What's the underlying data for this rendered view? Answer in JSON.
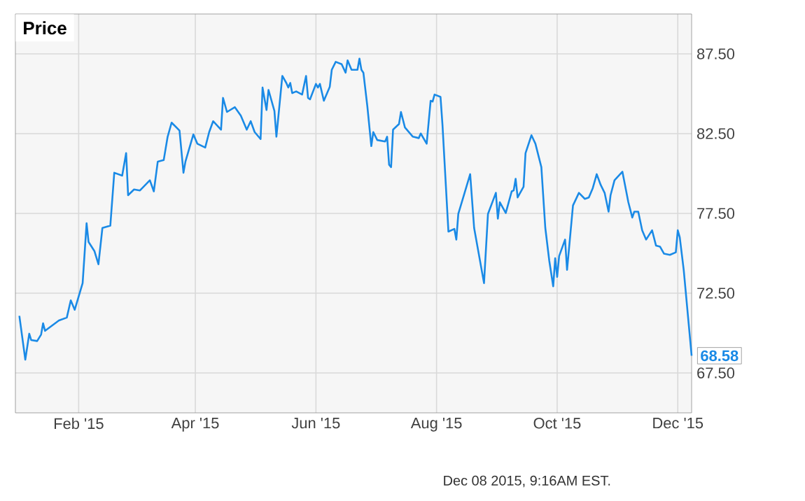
{
  "chart_data": {
    "type": "line",
    "title": "Price",
    "color": "#1a8ae6",
    "line_style": "solid",
    "marker": "none",
    "grid": true,
    "xlim": [
      "2014-12-31",
      "2015-12-08"
    ],
    "xticks": [
      {
        "value": "2015-02-01",
        "label": "Feb '15"
      },
      {
        "value": "2015-04-01",
        "label": "Apr '15"
      },
      {
        "value": "2015-06-01",
        "label": "Jun '15"
      },
      {
        "value": "2015-08-01",
        "label": "Aug '15"
      },
      {
        "value": "2015-10-01",
        "label": "Oct '15"
      },
      {
        "value": "2015-12-01",
        "label": "Dec '15"
      }
    ],
    "ylim": [
      65,
      90
    ],
    "yticks": [
      {
        "value": 67.5,
        "label": "67.50"
      },
      {
        "value": 72.5,
        "label": "72.50"
      },
      {
        "value": 77.5,
        "label": "77.50"
      },
      {
        "value": 82.5,
        "label": "82.50"
      },
      {
        "value": 87.5,
        "label": "87.50"
      }
    ],
    "x": [
      "2015-01-02",
      "2015-01-05",
      "2015-01-07",
      "2015-01-08",
      "2015-01-11",
      "2015-01-13",
      "2015-01-14",
      "2015-01-15",
      "2015-01-22",
      "2015-01-26",
      "2015-01-28",
      "2015-01-30",
      "2015-02-03",
      "2015-02-05",
      "2015-02-06",
      "2015-02-09",
      "2015-02-11",
      "2015-02-13",
      "2015-02-17",
      "2015-02-19",
      "2015-02-23",
      "2015-02-25",
      "2015-02-26",
      "2015-03-01",
      "2015-03-04",
      "2015-03-09",
      "2015-03-11",
      "2015-03-13",
      "2015-03-16",
      "2015-03-18",
      "2015-03-20",
      "2015-03-24",
      "2015-03-26",
      "2015-03-27",
      "2015-03-31",
      "2015-04-02",
      "2015-04-06",
      "2015-04-08",
      "2015-04-10",
      "2015-04-14",
      "2015-04-15",
      "2015-04-17",
      "2015-04-21",
      "2015-04-24",
      "2015-04-27",
      "2015-04-29",
      "2015-05-01",
      "2015-05-04",
      "2015-05-05",
      "2015-05-07",
      "2015-05-08",
      "2015-05-11",
      "2015-05-12",
      "2015-05-15",
      "2015-05-17",
      "2015-05-18",
      "2015-05-19",
      "2015-05-20",
      "2015-05-22",
      "2015-05-25",
      "2015-05-27",
      "2015-05-28",
      "2015-05-29",
      "2015-06-01",
      "2015-06-02",
      "2015-06-03",
      "2015-06-05",
      "2015-06-08",
      "2015-06-09",
      "2015-06-11",
      "2015-06-14",
      "2015-06-16",
      "2015-06-17",
      "2015-06-19",
      "2015-06-22",
      "2015-06-23",
      "2015-06-24",
      "2015-06-25",
      "2015-06-27",
      "2015-06-29",
      "2015-06-30",
      "2015-07-02",
      "2015-07-06",
      "2015-07-07",
      "2015-07-08",
      "2015-07-09",
      "2015-07-10",
      "2015-07-13",
      "2015-07-14",
      "2015-07-16",
      "2015-07-20",
      "2015-07-23",
      "2015-07-24",
      "2015-07-27",
      "2015-07-29",
      "2015-07-30",
      "2015-07-31",
      "2015-08-03",
      "2015-08-04",
      "2015-08-07",
      "2015-08-10",
      "2015-08-11",
      "2015-08-12",
      "2015-08-18",
      "2015-08-20",
      "2015-08-25",
      "2015-08-27",
      "2015-08-31",
      "2015-09-01",
      "2015-09-02",
      "2015-09-05",
      "2015-09-08",
      "2015-09-09",
      "2015-09-10",
      "2015-09-11",
      "2015-09-14",
      "2015-09-15",
      "2015-09-18",
      "2015-09-20",
      "2015-09-23",
      "2015-09-25",
      "2015-09-27",
      "2015-09-29",
      "2015-09-30",
      "2015-10-01",
      "2015-10-02",
      "2015-10-05",
      "2015-10-06",
      "2015-10-09",
      "2015-10-12",
      "2015-10-15",
      "2015-10-17",
      "2015-10-19",
      "2015-10-21",
      "2015-10-23",
      "2015-10-25",
      "2015-10-27",
      "2015-10-28",
      "2015-10-30",
      "2015-11-03",
      "2015-11-06",
      "2015-11-08",
      "2015-11-09",
      "2015-11-11",
      "2015-11-13",
      "2015-11-15",
      "2015-11-18",
      "2015-11-20",
      "2015-11-22",
      "2015-11-24",
      "2015-11-27",
      "2015-11-30",
      "2015-12-01",
      "2015-12-02",
      "2015-12-04",
      "2015-12-08"
    ],
    "values": [
      71.08,
      68.33,
      69.96,
      69.56,
      69.5,
      69.91,
      70.61,
      70.14,
      70.79,
      70.97,
      72.05,
      71.46,
      73.13,
      76.88,
      75.71,
      75.13,
      74.31,
      76.59,
      76.73,
      80.05,
      79.87,
      81.28,
      78.64,
      79.0,
      78.94,
      79.58,
      78.88,
      80.75,
      80.84,
      82.31,
      83.19,
      82.69,
      80.05,
      80.75,
      82.45,
      81.87,
      81.63,
      82.6,
      83.28,
      82.75,
      84.74,
      83.86,
      84.16,
      83.63,
      82.75,
      83.28,
      82.6,
      82.16,
      85.39,
      83.98,
      85.24,
      83.92,
      82.31,
      86.12,
      85.68,
      85.39,
      85.68,
      85.04,
      85.15,
      84.95,
      86.12,
      84.74,
      84.65,
      85.62,
      85.39,
      85.62,
      84.56,
      85.44,
      86.5,
      87.0,
      86.85,
      86.32,
      87.09,
      86.5,
      86.5,
      87.2,
      86.5,
      86.32,
      84.21,
      81.72,
      82.6,
      82.1,
      82.01,
      82.31,
      80.55,
      80.4,
      82.75,
      83.1,
      83.86,
      82.89,
      82.31,
      82.22,
      82.51,
      81.87,
      84.56,
      84.51,
      84.95,
      84.8,
      83.04,
      76.36,
      76.53,
      75.86,
      77.47,
      79.96,
      76.59,
      73.13,
      77.47,
      78.79,
      77.17,
      78.2,
      77.53,
      78.88,
      78.94,
      79.67,
      78.5,
      79.17,
      81.28,
      82.4,
      81.87,
      80.4,
      76.59,
      74.54,
      72.93,
      74.69,
      73.52,
      74.83,
      75.86,
      73.96,
      78.0,
      78.79,
      78.41,
      78.5,
      79.08,
      79.96,
      79.29,
      78.79,
      77.61,
      78.64,
      79.58,
      80.11,
      78.2,
      77.24,
      77.61,
      77.61,
      76.44,
      75.86,
      76.44,
      75.48,
      75.42,
      74.98,
      74.9,
      75.06,
      76.44,
      76.0,
      73.96,
      68.58
    ],
    "annotations": [
      {
        "text": "68.58",
        "x": "2015-12-08",
        "y": 68.58
      },
      "Dec 08 2015, 9:16AM EST."
    ]
  }
}
